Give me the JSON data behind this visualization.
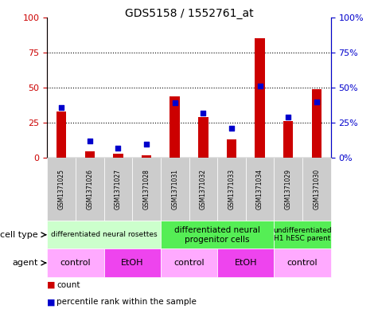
{
  "title": "GDS5158 / 1552761_at",
  "samples": [
    "GSM1371025",
    "GSM1371026",
    "GSM1371027",
    "GSM1371028",
    "GSM1371031",
    "GSM1371032",
    "GSM1371033",
    "GSM1371034",
    "GSM1371029",
    "GSM1371030"
  ],
  "count_values": [
    33,
    5,
    3,
    2,
    44,
    29,
    13,
    85,
    26,
    49
  ],
  "percentile_values": [
    36,
    12,
    7,
    10,
    39,
    32,
    21,
    51,
    29,
    40
  ],
  "count_color": "#cc0000",
  "percentile_color": "#0000cc",
  "ylim": [
    0,
    100
  ],
  "yticks": [
    0,
    25,
    50,
    75,
    100
  ],
  "cell_type_groups": [
    {
      "label": "differentiated neural rosettes",
      "start": 0,
      "end": 4,
      "color": "#ccffcc",
      "fontsize": 6.5
    },
    {
      "label": "differentiated neural\nprogenitor cells",
      "start": 4,
      "end": 8,
      "color": "#55ee55",
      "fontsize": 7.5
    },
    {
      "label": "undifferentiated\nH1 hESC parent",
      "start": 8,
      "end": 10,
      "color": "#55ee55",
      "fontsize": 6.5
    }
  ],
  "agent_groups": [
    {
      "label": "control",
      "start": 0,
      "end": 2,
      "color": "#ffaaff"
    },
    {
      "label": "EtOH",
      "start": 2,
      "end": 4,
      "color": "#ee44ee"
    },
    {
      "label": "control",
      "start": 4,
      "end": 6,
      "color": "#ffaaff"
    },
    {
      "label": "EtOH",
      "start": 6,
      "end": 8,
      "color": "#ee44ee"
    },
    {
      "label": "control",
      "start": 8,
      "end": 10,
      "color": "#ffaaff"
    }
  ],
  "row_label_cell_type": "cell type",
  "row_label_agent": "agent",
  "legend_count": "count",
  "legend_percentile": "percentile rank within the sample",
  "sample_col_bg": "#cccccc"
}
